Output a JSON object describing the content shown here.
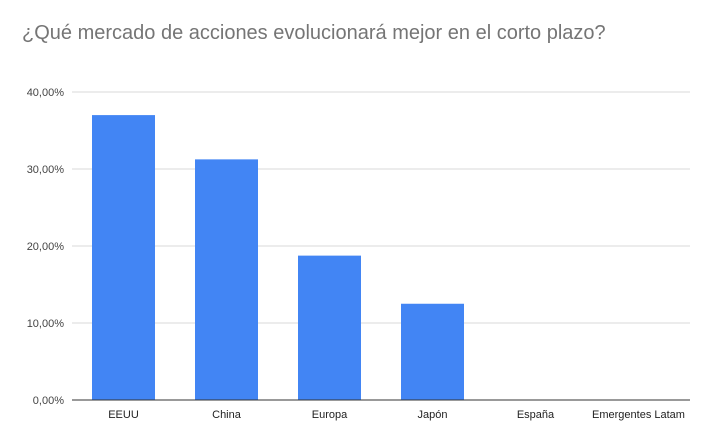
{
  "chart_data": {
    "type": "bar",
    "title": "¿Qué mercado de acciones evolucionará mejor en el corto plazo?",
    "xlabel": "",
    "ylabel": "",
    "categories": [
      "EEUU",
      "China",
      "Europa",
      "Japón",
      "España",
      "Emergentes Latam"
    ],
    "values": [
      37.0,
      31.25,
      18.75,
      12.5,
      0,
      0
    ],
    "ylim": [
      0,
      40
    ],
    "yticks": [
      0,
      10,
      20,
      30,
      40
    ],
    "ytick_labels": [
      "0,00%",
      "10,00%",
      "20,00%",
      "30,00%",
      "40,00%"
    ],
    "grid": true,
    "legend": "none",
    "colors": {
      "bar": "#4285f4",
      "grid": "#d9d9d9",
      "axis": "#333333"
    }
  }
}
